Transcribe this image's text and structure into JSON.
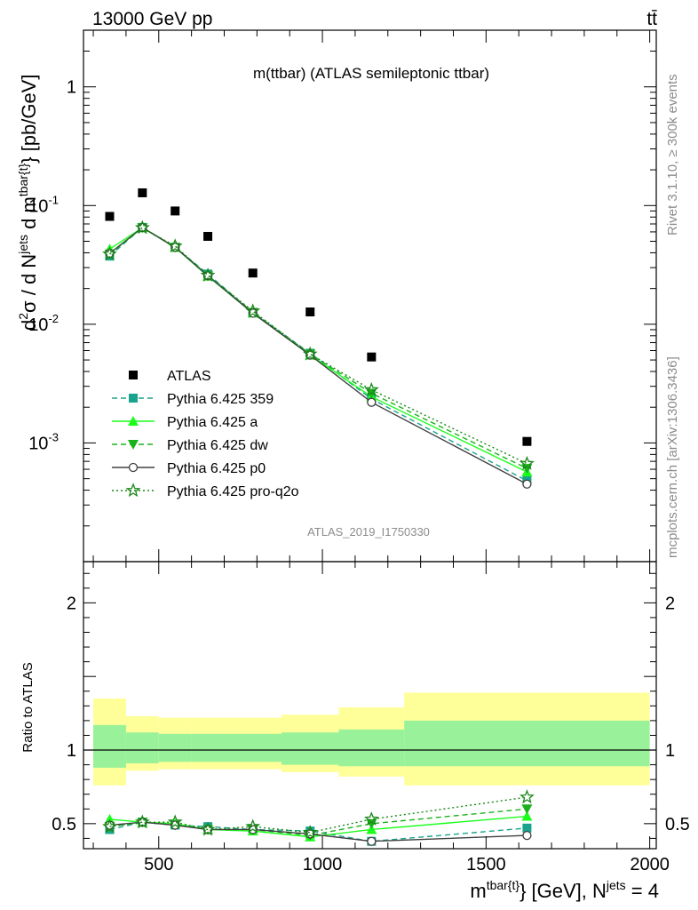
{
  "header": {
    "left": "13000 GeV pp",
    "right": "tt̄"
  },
  "side_labels": {
    "rivet": "Rivet 3.1.10, ≥ 300k events",
    "mcplots": "mcplots.cern.ch [arXiv:1306.3436]"
  },
  "colors": {
    "data": "#000000",
    "band_inner": "#99f299",
    "band_outer": "#ffff99",
    "p359": "#1aa38c",
    "a": "#1aff1a",
    "dw": "#1ab21a",
    "p0": "#404040",
    "proq2o": "#188818"
  },
  "chart_data": [
    {
      "type": "line",
      "panel": "main",
      "title": "m(ttbar) (ATLAS semileptonic ttbar)",
      "watermark": "ATLAS_2019_I1750330",
      "ylabel": "d²σ / d N^jets d m^tbar{t} [pb/GeV]",
      "yscale": "log",
      "ylim": [
        0.0001,
        3.0
      ],
      "xlim": [
        270,
        2020
      ],
      "ytick_labels": [
        "1",
        "10^-1",
        "10^-2",
        "10^-3"
      ],
      "legend_position": "lower-left",
      "x": [
        350,
        450,
        550,
        650,
        787.5,
        962.5,
        1150,
        1625
      ],
      "x_bins": [
        [
          300,
          400
        ],
        [
          400,
          500
        ],
        [
          500,
          600
        ],
        [
          600,
          700
        ],
        [
          700,
          875
        ],
        [
          875,
          1050
        ],
        [
          1050,
          1250
        ],
        [
          1250,
          2000
        ]
      ],
      "series": [
        {
          "name": "ATLAS",
          "key": "data",
          "marker": "square",
          "style": "none",
          "values": [
            0.081,
            0.128,
            0.09,
            0.055,
            0.027,
            0.0127,
            0.0053,
            0.00103
          ]
        },
        {
          "name": "Pythia 6.425 359",
          "key": "p359",
          "marker": "square",
          "style": "dashed",
          "values": [
            0.0375,
            0.0655,
            0.0445,
            0.0265,
            0.0126,
            0.0057,
            0.00235,
            0.00048
          ]
        },
        {
          "name": "Pythia 6.425 a",
          "key": "a",
          "marker": "triangle-up",
          "style": "solid",
          "values": [
            0.043,
            0.065,
            0.0443,
            0.0254,
            0.0124,
            0.0055,
            0.00245,
            0.00057
          ]
        },
        {
          "name": "Pythia 6.425 dw",
          "key": "dw",
          "marker": "triangle-down",
          "style": "dashed",
          "values": [
            0.039,
            0.065,
            0.0445,
            0.0256,
            0.0126,
            0.0056,
            0.00262,
            0.00061
          ]
        },
        {
          "name": "Pythia 6.425 p0",
          "key": "p0",
          "marker": "open-circle",
          "style": "solid",
          "values": [
            0.0395,
            0.0653,
            0.0445,
            0.0256,
            0.0124,
            0.0055,
            0.0022,
            0.00045
          ]
        },
        {
          "name": "Pythia 6.425 pro-q2o",
          "key": "proq2o",
          "marker": "star",
          "style": "dotted",
          "values": [
            0.039,
            0.065,
            0.0455,
            0.0258,
            0.0129,
            0.0056,
            0.0028,
            0.00067
          ]
        }
      ]
    },
    {
      "type": "line",
      "panel": "ratio",
      "ylabel": "Ratio to ATLAS",
      "xlabel": "m^tbar{t}} [GeV], N^jets = 4",
      "ylim": [
        0.33,
        2.28
      ],
      "xlim": [
        270,
        2020
      ],
      "x_ticks": [
        500,
        1000,
        1500,
        2000
      ],
      "y_ticks": [
        0.5,
        1,
        2
      ],
      "reference": 1,
      "x": [
        350,
        450,
        550,
        650,
        787.5,
        962.5,
        1150,
        1625
      ],
      "band_inner": [
        [
          0.88,
          1.17
        ],
        [
          0.91,
          1.12
        ],
        [
          0.92,
          1.11
        ],
        [
          0.92,
          1.11
        ],
        [
          0.92,
          1.11
        ],
        [
          0.9,
          1.12
        ],
        [
          0.89,
          1.14
        ],
        [
          0.89,
          1.2
        ]
      ],
      "band_outer": [
        [
          0.76,
          1.35
        ],
        [
          0.86,
          1.23
        ],
        [
          0.87,
          1.22
        ],
        [
          0.87,
          1.22
        ],
        [
          0.87,
          1.22
        ],
        [
          0.85,
          1.24
        ],
        [
          0.82,
          1.29
        ],
        [
          0.76,
          1.39
        ]
      ],
      "series": [
        {
          "name": "Pythia 6.425 359",
          "key": "p359",
          "marker": "square",
          "style": "dashed",
          "values": [
            0.46,
            0.51,
            0.49,
            0.48,
            0.46,
            0.45,
            0.38,
            0.47
          ]
        },
        {
          "name": "Pythia 6.425 a",
          "key": "a",
          "marker": "triangle-up",
          "style": "solid",
          "values": [
            0.53,
            0.51,
            0.5,
            0.46,
            0.45,
            0.41,
            0.46,
            0.55
          ]
        },
        {
          "name": "Pythia 6.425 dw",
          "key": "dw",
          "marker": "triangle-down",
          "style": "dashed",
          "values": [
            0.48,
            0.51,
            0.49,
            0.46,
            0.46,
            0.42,
            0.5,
            0.6
          ]
        },
        {
          "name": "Pythia 6.425 p0",
          "key": "p0",
          "marker": "open-circle",
          "style": "solid",
          "values": [
            0.49,
            0.51,
            0.49,
            0.46,
            0.46,
            0.43,
            0.38,
            0.42
          ]
        },
        {
          "name": "Pythia 6.425 pro-q2o",
          "key": "proq2o",
          "marker": "star",
          "style": "dotted",
          "values": [
            0.48,
            0.51,
            0.51,
            0.46,
            0.48,
            0.44,
            0.53,
            0.68
          ]
        }
      ]
    }
  ]
}
